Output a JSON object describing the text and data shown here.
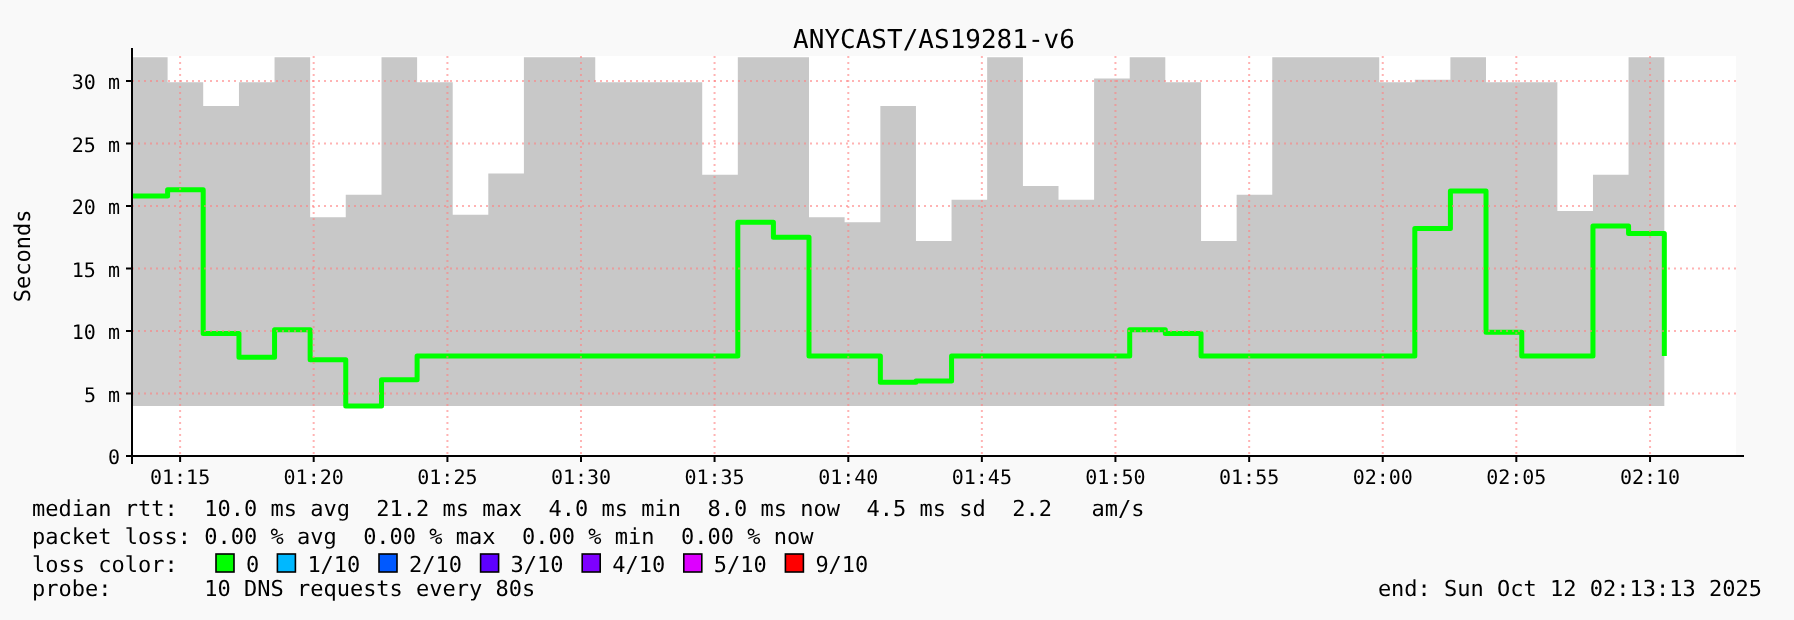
{
  "chart_data": {
    "type": "step",
    "title": "ANYCAST/AS19281-v6",
    "ylabel": "Seconds",
    "legend_title": "loss color:",
    "legend": "bottom",
    "grid": true,
    "xlim": [
      1.22,
      2.2203
    ],
    "xticks": [
      {
        "value": 1.25,
        "label": "01:15"
      },
      {
        "value": 1.3333,
        "label": "01:20"
      },
      {
        "value": 1.4167,
        "label": "01:25"
      },
      {
        "value": 1.5,
        "label": "01:30"
      },
      {
        "value": 1.5833,
        "label": "01:35"
      },
      {
        "value": 1.6667,
        "label": "01:40"
      },
      {
        "value": 1.75,
        "label": "01:45"
      },
      {
        "value": 1.8333,
        "label": "01:50"
      },
      {
        "value": 1.9167,
        "label": "01:55"
      },
      {
        "value": 2,
        "label": "02:00"
      },
      {
        "value": 2.0833,
        "label": "02:05"
      },
      {
        "value": 2.1667,
        "label": "02:10"
      }
    ],
    "ylim": [
      0,
      32
    ],
    "yticks": [
      0,
      {
        "value": 5,
        "label": "5 m"
      },
      {
        "value": 10,
        "label": "10 m"
      },
      {
        "value": 15,
        "label": "15 m"
      },
      {
        "value": 20,
        "label": "20 m"
      },
      {
        "value": 25,
        "label": "25 m"
      },
      {
        "value": 30,
        "label": "30 m"
      }
    ],
    "x": [
      1.22,
      1.2422,
      1.2644,
      1.2867,
      1.3089,
      1.3311,
      1.3533,
      1.3756,
      1.3978,
      1.42,
      1.4422,
      1.4644,
      1.4867,
      1.5089,
      1.5311,
      1.5533,
      1.5756,
      1.5978,
      1.62,
      1.6422,
      1.6644,
      1.6867,
      1.7089,
      1.7311,
      1.7533,
      1.7756,
      1.7978,
      1.82,
      1.8422,
      1.8644,
      1.8867,
      1.9089,
      1.9311,
      1.9533,
      1.9756,
      1.9978,
      2.02,
      2.0422,
      2.0644,
      2.0867,
      2.1089,
      2.1311,
      2.1533,
      2.1756
    ],
    "series": [
      {
        "name": "0",
        "color": "#00ff00",
        "values": [
          20.8,
          21.3,
          9.8,
          7.9,
          10.1,
          7.7,
          4.0,
          6.1,
          8.0,
          8.0,
          8.0,
          8.0,
          8.0,
          8.0,
          8.0,
          8.0,
          8.0,
          18.7,
          17.5,
          8.0,
          8.0,
          5.9,
          6.0,
          8.0,
          8.0,
          8.0,
          8.0,
          8.0,
          10.1,
          9.8,
          8.0,
          8.0,
          8.0,
          8.0,
          8.0,
          8.0,
          18.2,
          21.2,
          9.9,
          8.0,
          8.0,
          18.4,
          17.8,
          8.0
        ],
        "lower": [
          4,
          4,
          4,
          4,
          4,
          4,
          4,
          4,
          4,
          4,
          4,
          4,
          4,
          4,
          4,
          4,
          4,
          4,
          4,
          4,
          4,
          4,
          4,
          4,
          4,
          4,
          4,
          4,
          4,
          4,
          4,
          4,
          4,
          4,
          4,
          4,
          4,
          4,
          4,
          4,
          4,
          4,
          4,
          4
        ],
        "upper": [
          31.9,
          29.9,
          28.0,
          29.9,
          31.9,
          19.1,
          20.9,
          31.9,
          29.9,
          19.3,
          22.6,
          31.9,
          31.9,
          29.9,
          29.9,
          29.9,
          22.5,
          31.9,
          31.9,
          19.1,
          18.7,
          28.0,
          17.2,
          20.5,
          31.9,
          21.6,
          20.5,
          30.2,
          31.9,
          29.9,
          17.2,
          20.9,
          31.9,
          31.9,
          31.9,
          29.9,
          30.1,
          31.9,
          29.9,
          29.9,
          19.6,
          22.5,
          31.9,
          31.9
        ]
      },
      {
        "name": "1/10",
        "color": "#00b8ff",
        "values": [
          null,
          null,
          null,
          null,
          null,
          null,
          null,
          null,
          null,
          null,
          null,
          null,
          null,
          null,
          null,
          null,
          null,
          null,
          null,
          null,
          null,
          null,
          null,
          null,
          null,
          null,
          null,
          null,
          null,
          null,
          null,
          null,
          null,
          null,
          null,
          null,
          null,
          null,
          null,
          null,
          null,
          null,
          null,
          null
        ]
      },
      {
        "name": "2/10",
        "color": "#0059ff",
        "values": [
          null,
          null,
          null,
          null,
          null,
          null,
          null,
          null,
          null,
          null,
          null,
          null,
          null,
          null,
          null,
          null,
          null,
          null,
          null,
          null,
          null,
          null,
          null,
          null,
          null,
          null,
          null,
          null,
          null,
          null,
          null,
          null,
          null,
          null,
          null,
          null,
          null,
          null,
          null,
          null,
          null,
          null,
          null,
          null
        ]
      },
      {
        "name": "3/10",
        "color": "#5e00ff",
        "values": [
          null,
          null,
          null,
          null,
          null,
          null,
          null,
          null,
          null,
          null,
          null,
          null,
          null,
          null,
          null,
          null,
          null,
          null,
          null,
          null,
          null,
          null,
          null,
          null,
          null,
          null,
          null,
          null,
          null,
          null,
          null,
          null,
          null,
          null,
          null,
          null,
          null,
          null,
          null,
          null,
          null,
          null,
          null,
          null
        ]
      },
      {
        "name": "4/10",
        "color": "#7e00ff",
        "values": [
          null,
          null,
          null,
          null,
          null,
          null,
          null,
          null,
          null,
          null,
          null,
          null,
          null,
          null,
          null,
          null,
          null,
          null,
          null,
          null,
          null,
          null,
          null,
          null,
          null,
          null,
          null,
          null,
          null,
          null,
          null,
          null,
          null,
          null,
          null,
          null,
          null,
          null,
          null,
          null,
          null,
          null,
          null,
          null
        ]
      },
      {
        "name": "5/10",
        "color": "#dd00ff",
        "values": [
          null,
          null,
          null,
          null,
          null,
          null,
          null,
          null,
          null,
          null,
          null,
          null,
          null,
          null,
          null,
          null,
          null,
          null,
          null,
          null,
          null,
          null,
          null,
          null,
          null,
          null,
          null,
          null,
          null,
          null,
          null,
          null,
          null,
          null,
          null,
          null,
          null,
          null,
          null,
          null,
          null,
          null,
          null,
          null
        ]
      },
      {
        "name": "9/10",
        "color": "#ff0000",
        "values": [
          null,
          null,
          null,
          null,
          null,
          null,
          null,
          null,
          null,
          null,
          null,
          null,
          null,
          null,
          null,
          null,
          null,
          null,
          null,
          null,
          null,
          null,
          null,
          null,
          null,
          null,
          null,
          null,
          null,
          null,
          null,
          null,
          null,
          null,
          null,
          null,
          null,
          null,
          null,
          null,
          null,
          null,
          null,
          null
        ]
      }
    ],
    "annotations": [
      "median rtt:  10.0 ms avg  21.2 ms max  4.0 ms min  8.0 ms now  4.5 ms sd  2.2   am/s",
      "packet loss: 0.00 % avg  0.00 % max  0.00 % min  0.00 % now",
      "probe:       10 DNS requests every 80s",
      "end: Sun Oct 12 02:13:13 2025"
    ]
  }
}
